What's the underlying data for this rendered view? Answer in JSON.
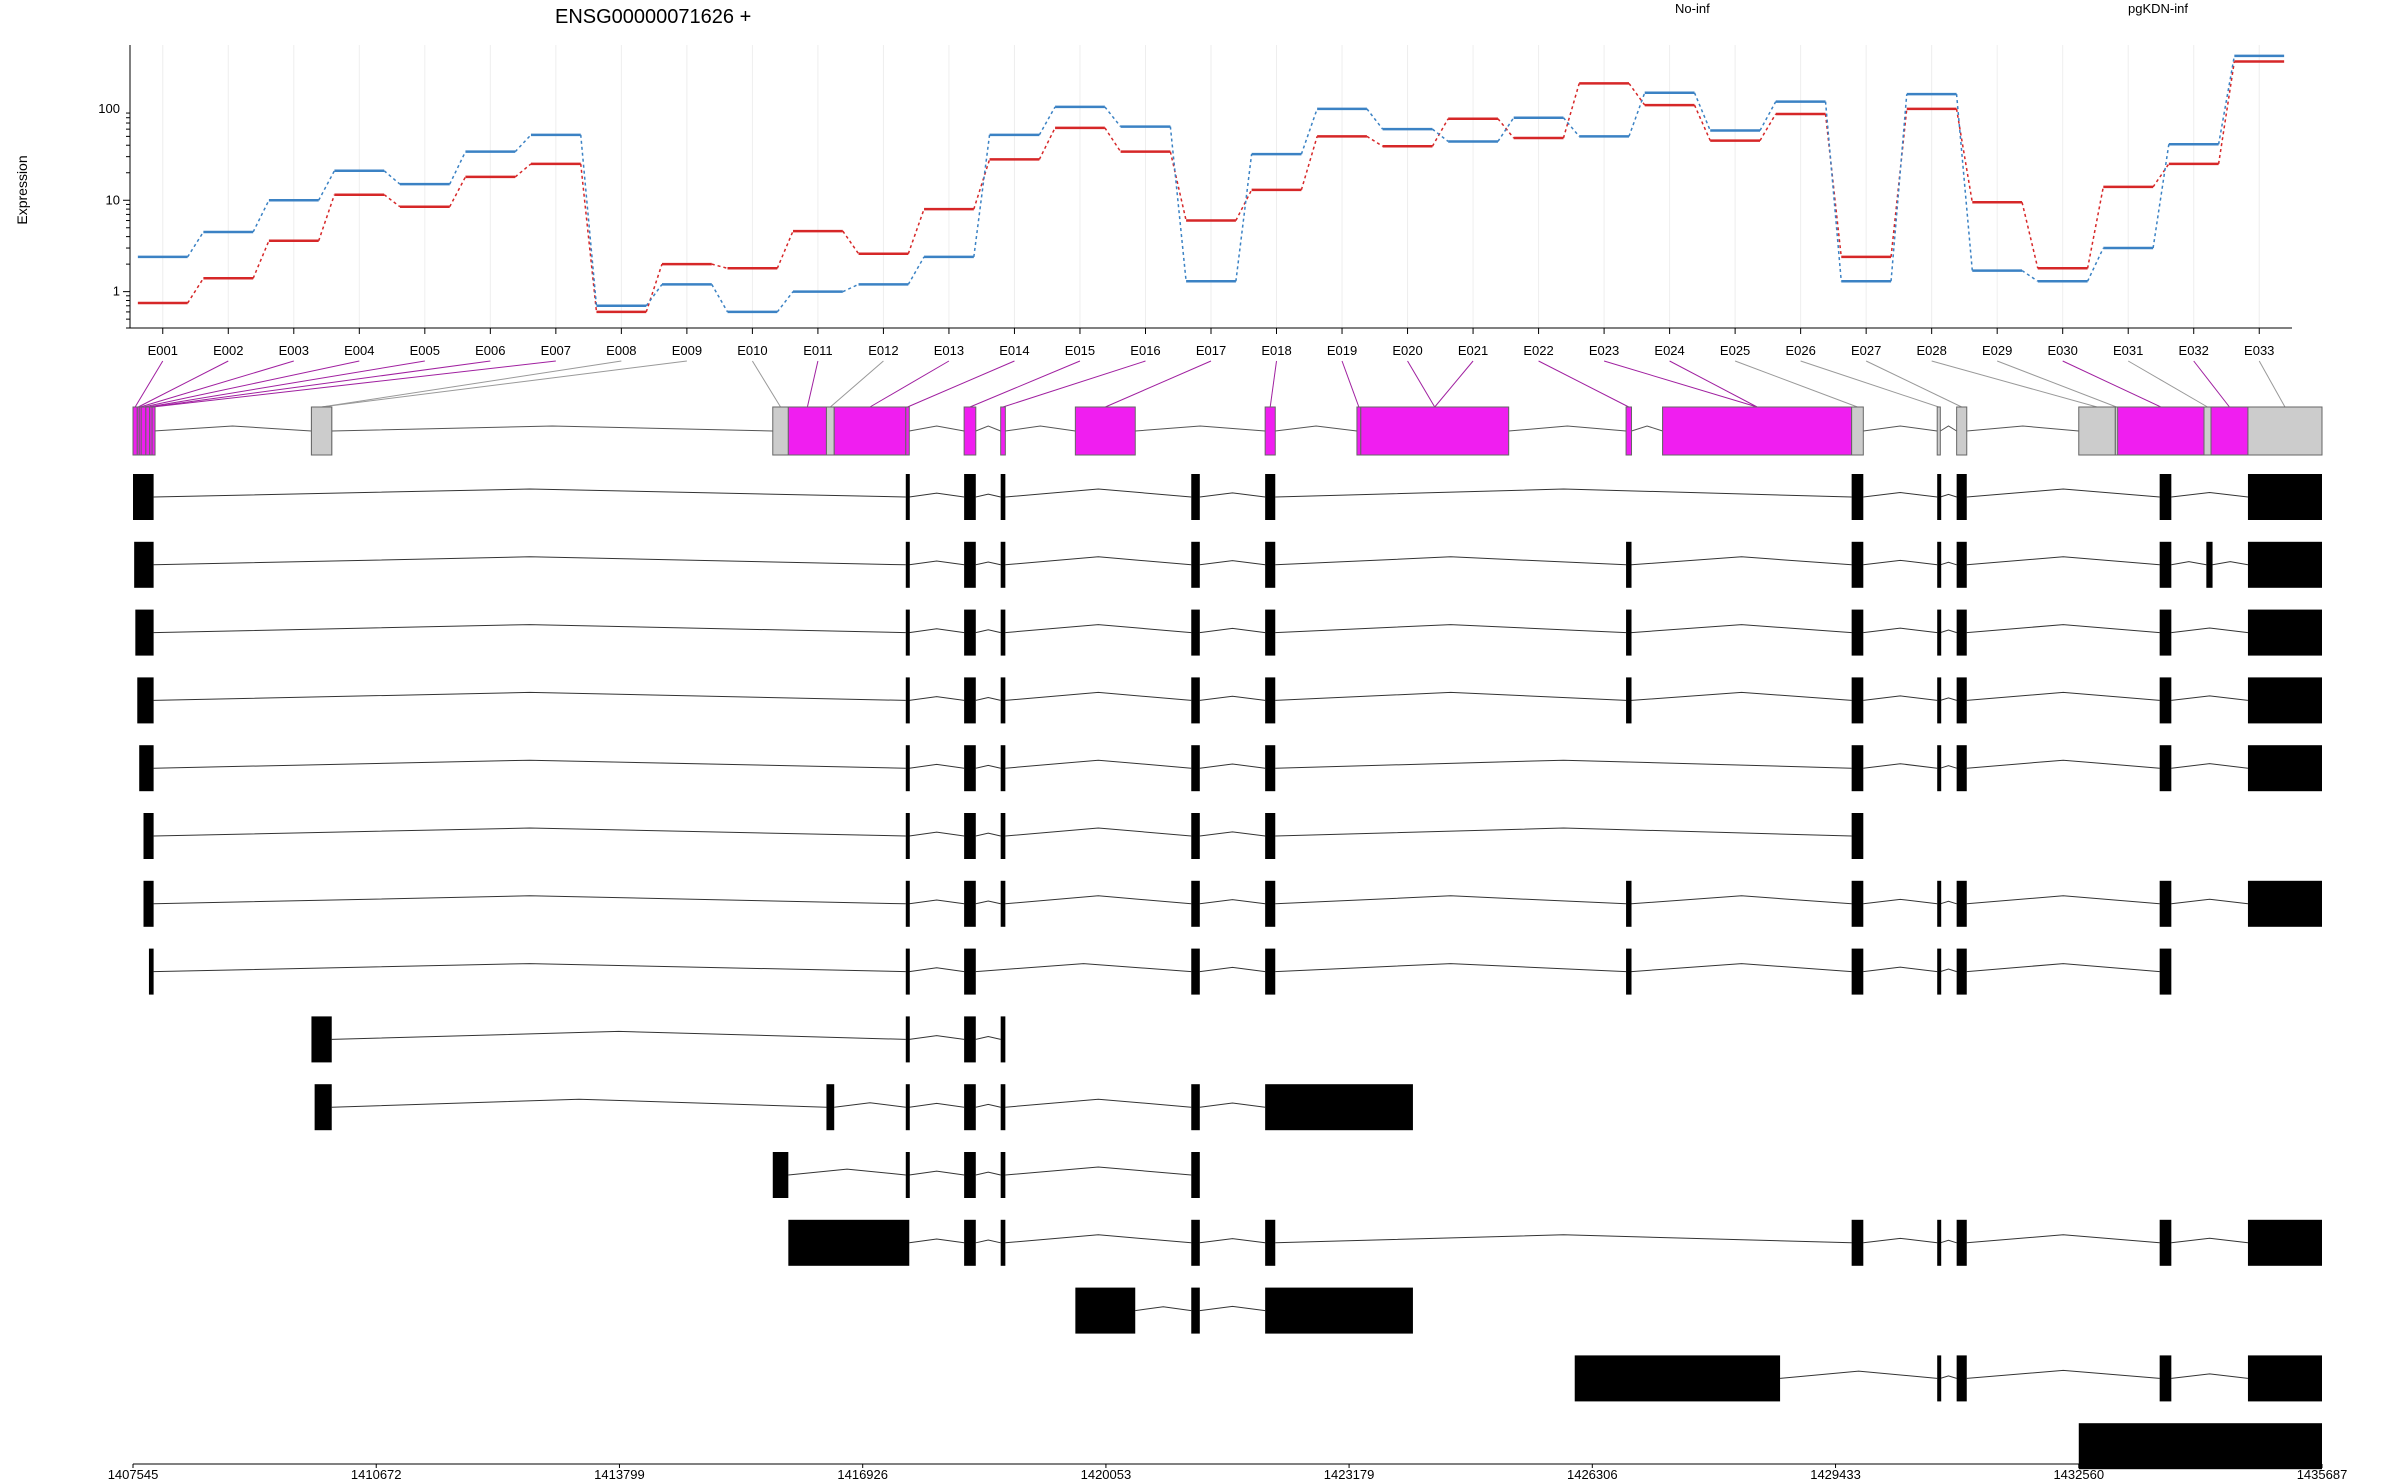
{
  "title": "ENSG00000071626 +",
  "colors": {
    "no_inf": "#d62728",
    "pgkdn_inf": "#3b82c4",
    "exon_highlight": "#f01ef0",
    "exon_plain": "#cccccc",
    "transcript_exon": "#000000",
    "grid": "#eeeeee"
  },
  "chart_data": {
    "type": "line",
    "ylabel": "Expression",
    "y_scale": "log",
    "yticks": [
      1,
      10,
      100
    ],
    "ytick_labels": [
      "1",
      "10",
      "100"
    ],
    "ylim": [
      0.4,
      500
    ],
    "categories": [
      "E001",
      "E002",
      "E003",
      "E004",
      "E005",
      "E006",
      "E007",
      "E008",
      "E009",
      "E010",
      "E011",
      "E012",
      "E013",
      "E014",
      "E015",
      "E016",
      "E017",
      "E018",
      "E019",
      "E020",
      "E021",
      "E022",
      "E023",
      "E024",
      "E025",
      "E026",
      "E027",
      "E028",
      "E029",
      "E030",
      "E031",
      "E032",
      "E033"
    ],
    "series": [
      {
        "name": "No-inf",
        "color": "#d62728",
        "values": [
          0.75,
          1.4,
          3.6,
          11.5,
          8.5,
          18,
          25,
          0.6,
          2.0,
          1.8,
          4.6,
          2.6,
          8.0,
          28,
          62,
          34,
          6.0,
          13,
          50,
          39,
          78,
          48,
          190,
          110,
          45,
          88,
          2.4,
          100,
          9.5,
          1.8,
          14,
          25,
          330
        ]
      },
      {
        "name": "pgKDN-inf",
        "color": "#3b82c4",
        "values": [
          2.4,
          4.5,
          10,
          21,
          15,
          34,
          52,
          0.7,
          1.2,
          0.6,
          1.0,
          1.2,
          2.4,
          52,
          105,
          64,
          1.3,
          32,
          100,
          60,
          44,
          80,
          50,
          150,
          58,
          120,
          1.3,
          145,
          1.7,
          1.3,
          3.0,
          41,
          380
        ]
      }
    ],
    "genomic_axis": {
      "range": [
        1407545,
        1435687
      ],
      "ticks": [
        1407545,
        1410672,
        1413799,
        1416926,
        1420053,
        1423179,
        1426306,
        1429433,
        1432560,
        1435687
      ],
      "tick_labels": [
        "1407545",
        "1410672",
        "1413799",
        "1416926",
        "1420053",
        "1423179",
        "1426306",
        "1429433",
        "1432560",
        "1435687"
      ]
    },
    "exons": [
      {
        "id": "E001",
        "start": 1407545,
        "end": 1407600,
        "sig": true
      },
      {
        "id": "E002",
        "start": 1407600,
        "end": 1407625,
        "sig": true
      },
      {
        "id": "E003",
        "start": 1407625,
        "end": 1407650,
        "sig": true
      },
      {
        "id": "E004",
        "start": 1407650,
        "end": 1407710,
        "sig": true
      },
      {
        "id": "E005",
        "start": 1407710,
        "end": 1407760,
        "sig": true
      },
      {
        "id": "E006",
        "start": 1407760,
        "end": 1407790,
        "sig": true
      },
      {
        "id": "E007",
        "start": 1407790,
        "end": 1407810,
        "sig": true
      },
      {
        "id": "E008",
        "start": 1409839,
        "end": 1410100,
        "sig": false
      },
      {
        "id": "E009",
        "start": 1409839,
        "end": 1410100,
        "sig": false
      },
      {
        "id": "E010",
        "start": 1415770,
        "end": 1415970,
        "sig": false
      },
      {
        "id": "E011",
        "start": 1415970,
        "end": 1416460,
        "sig": true
      },
      {
        "id": "E012",
        "start": 1416460,
        "end": 1416560,
        "sig": false
      },
      {
        "id": "E013",
        "start": 1416560,
        "end": 1417480,
        "sig": true
      },
      {
        "id": "E014",
        "start": 1417480,
        "end": 1417525,
        "sig": true
      },
      {
        "id": "E015",
        "start": 1418230,
        "end": 1418380,
        "sig": true
      },
      {
        "id": "E016",
        "start": 1418700,
        "end": 1418760,
        "sig": true
      },
      {
        "id": "E017",
        "start": 1419660,
        "end": 1420430,
        "sig": true
      },
      {
        "id": "E018",
        "start": 1422100,
        "end": 1422230,
        "sig": true
      },
      {
        "id": "E019",
        "start": 1423280,
        "end": 1423330,
        "sig": true
      },
      {
        "id": "E020",
        "start": 1423330,
        "end": 1425230,
        "sig": true
      },
      {
        "id": "E021",
        "start": 1423330,
        "end": 1425230,
        "sig": true
      },
      {
        "id": "E022",
        "start": 1426740,
        "end": 1426810,
        "sig": true
      },
      {
        "id": "E023",
        "start": 1427210,
        "end": 1429640,
        "sig": true
      },
      {
        "id": "E024",
        "start": 1427210,
        "end": 1429640,
        "sig": true
      },
      {
        "id": "E025",
        "start": 1429640,
        "end": 1429790,
        "sig": false
      },
      {
        "id": "E026",
        "start": 1430740,
        "end": 1430780,
        "sig": false
      },
      {
        "id": "E027",
        "start": 1430990,
        "end": 1431120,
        "sig": false
      },
      {
        "id": "E028",
        "start": 1432560,
        "end": 1433030,
        "sig": false
      },
      {
        "id": "E029",
        "start": 1433030,
        "end": 1433060,
        "sig": false
      },
      {
        "id": "E030",
        "start": 1433060,
        "end": 1434170,
        "sig": true
      },
      {
        "id": "E031",
        "start": 1434170,
        "end": 1434260,
        "sig": false
      },
      {
        "id": "E032",
        "start": 1434260,
        "end": 1434735,
        "sig": true
      },
      {
        "id": "E033",
        "start": 1434735,
        "end": 1435687,
        "sig": false
      }
    ],
    "transcripts": [
      [
        [
          1407545,
          1407810
        ],
        [
          1417480,
          1417525
        ],
        [
          1418230,
          1418380
        ],
        [
          1418700,
          1418760
        ],
        [
          1421150,
          1421260
        ],
        [
          1422100,
          1422230
        ],
        [
          1429640,
          1429790
        ],
        [
          1430740,
          1430780
        ],
        [
          1430990,
          1431120
        ],
        [
          1433600,
          1433750
        ],
        [
          1434735,
          1435687
        ]
      ],
      [
        [
          1407560,
          1407810
        ],
        [
          1417480,
          1417525
        ],
        [
          1418230,
          1418380
        ],
        [
          1418700,
          1418760
        ],
        [
          1421150,
          1421260
        ],
        [
          1422100,
          1422230
        ],
        [
          1426740,
          1426810
        ],
        [
          1429640,
          1429790
        ],
        [
          1430740,
          1430780
        ],
        [
          1430990,
          1431120
        ],
        [
          1433600,
          1433750
        ],
        [
          1434200,
          1434280
        ],
        [
          1434735,
          1435687
        ]
      ],
      [
        [
          1407575,
          1407810
        ],
        [
          1417480,
          1417525
        ],
        [
          1418230,
          1418380
        ],
        [
          1418700,
          1418760
        ],
        [
          1421150,
          1421260
        ],
        [
          1422100,
          1422230
        ],
        [
          1426740,
          1426810
        ],
        [
          1429640,
          1429790
        ],
        [
          1430740,
          1430780
        ],
        [
          1430990,
          1431120
        ],
        [
          1433600,
          1433750
        ],
        [
          1434735,
          1435687
        ]
      ],
      [
        [
          1407600,
          1407810
        ],
        [
          1417480,
          1417525
        ],
        [
          1418230,
          1418380
        ],
        [
          1418700,
          1418760
        ],
        [
          1421150,
          1421260
        ],
        [
          1422100,
          1422230
        ],
        [
          1426740,
          1426810
        ],
        [
          1429640,
          1429790
        ],
        [
          1430740,
          1430780
        ],
        [
          1430990,
          1431120
        ],
        [
          1433600,
          1433750
        ],
        [
          1434735,
          1435687
        ]
      ],
      [
        [
          1407625,
          1407810
        ],
        [
          1417480,
          1417525
        ],
        [
          1418230,
          1418380
        ],
        [
          1418700,
          1418760
        ],
        [
          1421150,
          1421260
        ],
        [
          1422100,
          1422230
        ],
        [
          1429640,
          1429790
        ],
        [
          1430740,
          1430780
        ],
        [
          1430990,
          1431120
        ],
        [
          1433600,
          1433750
        ],
        [
          1434735,
          1435687
        ]
      ],
      [
        [
          1407680,
          1407810
        ],
        [
          1417480,
          1417525
        ],
        [
          1418230,
          1418380
        ],
        [
          1418700,
          1418760
        ],
        [
          1421150,
          1421260
        ],
        [
          1422100,
          1422230
        ],
        [
          1429640,
          1429790
        ]
      ],
      [
        [
          1407680,
          1407810
        ],
        [
          1417480,
          1417525
        ],
        [
          1418230,
          1418380
        ],
        [
          1418700,
          1418760
        ],
        [
          1421150,
          1421260
        ],
        [
          1422100,
          1422230
        ],
        [
          1426740,
          1426810
        ],
        [
          1429640,
          1429790
        ],
        [
          1430740,
          1430780
        ],
        [
          1430990,
          1431120
        ],
        [
          1433600,
          1433750
        ],
        [
          1434735,
          1435687
        ]
      ],
      [
        [
          1407750,
          1407810
        ],
        [
          1417480,
          1417525
        ],
        [
          1418230,
          1418380
        ],
        [
          1421150,
          1421260
        ],
        [
          1422100,
          1422230
        ],
        [
          1426740,
          1426810
        ],
        [
          1429640,
          1429790
        ],
        [
          1430740,
          1430780
        ],
        [
          1430990,
          1431120
        ],
        [
          1433600,
          1433750
        ]
      ],
      [
        [
          1409839,
          1410100
        ],
        [
          1417480,
          1417525
        ],
        [
          1418230,
          1418380
        ],
        [
          1418700,
          1418760
        ]
      ],
      [
        [
          1409880,
          1410100
        ],
        [
          1416460,
          1416560
        ],
        [
          1417480,
          1417525
        ],
        [
          1418230,
          1418380
        ],
        [
          1418700,
          1418760
        ],
        [
          1421150,
          1421260
        ],
        [
          1422100,
          1424000
        ]
      ],
      [
        [
          1415770,
          1415970
        ],
        [
          1417480,
          1417525
        ],
        [
          1418230,
          1418380
        ],
        [
          1418700,
          1418760
        ],
        [
          1421150,
          1421260
        ]
      ],
      [
        [
          1415970,
          1417525
        ],
        [
          1418230,
          1418380
        ],
        [
          1418700,
          1418760
        ],
        [
          1421150,
          1421260
        ],
        [
          1422100,
          1422230
        ],
        [
          1429640,
          1429790
        ],
        [
          1430740,
          1430780
        ],
        [
          1430990,
          1431120
        ],
        [
          1433600,
          1433750
        ],
        [
          1434735,
          1435687
        ]
      ],
      [
        [
          1419660,
          1420430
        ],
        [
          1421150,
          1421260
        ],
        [
          1422100,
          1424000
        ]
      ],
      [
        [
          1426080,
          1428720
        ],
        [
          1430740,
          1430780
        ],
        [
          1430990,
          1431120
        ],
        [
          1433600,
          1433750
        ],
        [
          1434735,
          1435687
        ]
      ],
      [
        [
          1432560,
          1435687
        ]
      ]
    ]
  }
}
